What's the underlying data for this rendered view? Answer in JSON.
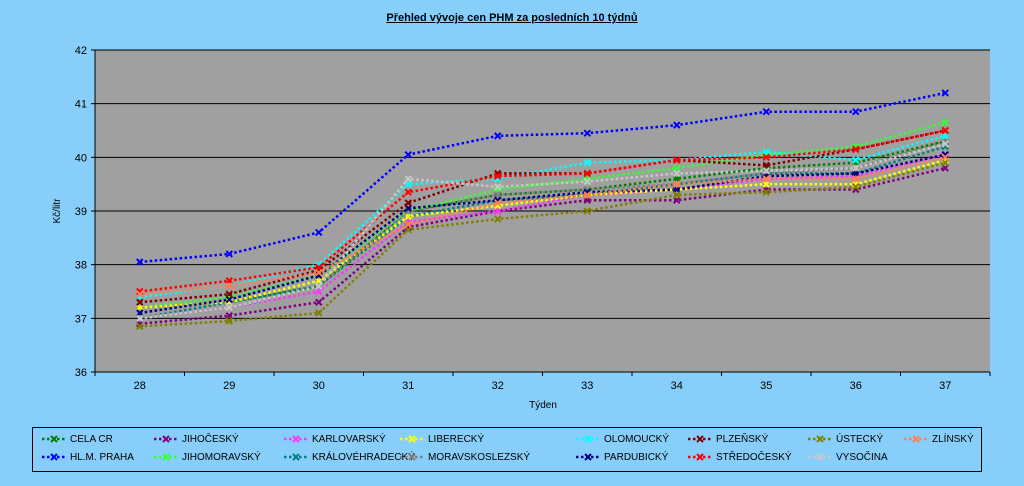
{
  "chart_data": {
    "type": "line",
    "title": "Přehled vývoje cen PHM za posledních 10 týdnů",
    "xlabel": "Týden",
    "ylabel": "Kč/litr",
    "x": [
      28,
      29,
      30,
      31,
      32,
      33,
      34,
      35,
      36,
      37
    ],
    "ylim": [
      36,
      42
    ],
    "yticks": [
      36,
      37,
      38,
      39,
      40,
      41,
      42
    ],
    "grid": true,
    "legend_position": "bottom",
    "series": [
      {
        "name": "CELA CR",
        "color": "#008000",
        "values": [
          37.2,
          37.3,
          37.6,
          39.0,
          39.3,
          39.4,
          39.6,
          39.8,
          39.9,
          40.3
        ]
      },
      {
        "name": "HL.M. PRAHA",
        "color": "#0000ff",
        "values": [
          38.05,
          38.2,
          38.6,
          40.05,
          40.4,
          40.45,
          40.6,
          40.85,
          40.85,
          41.2
        ]
      },
      {
        "name": "JIHOČESKÝ",
        "color": "#800080",
        "values": [
          36.9,
          37.05,
          37.3,
          38.7,
          39.0,
          39.2,
          39.2,
          39.4,
          39.4,
          39.8
        ]
      },
      {
        "name": "JIHOMORAVSKÝ",
        "color": "#33ff33",
        "values": [
          37.2,
          37.4,
          37.8,
          39.0,
          39.4,
          39.6,
          39.8,
          40.05,
          40.2,
          40.65
        ]
      },
      {
        "name": "KARLOVARSKÝ",
        "color": "#ff33ff",
        "values": [
          37.0,
          37.2,
          37.5,
          38.8,
          39.0,
          39.3,
          39.4,
          39.6,
          39.65,
          40.05
        ]
      },
      {
        "name": "KRÁLOVÉHRADECKÝ",
        "color": "#008080",
        "values": [
          37.0,
          37.3,
          37.6,
          38.9,
          39.2,
          39.3,
          39.5,
          39.7,
          39.7,
          40.2
        ]
      },
      {
        "name": "LIBERECKÝ",
        "color": "#ffff00",
        "values": [
          37.2,
          37.3,
          37.7,
          38.9,
          39.1,
          39.3,
          39.4,
          39.5,
          39.5,
          39.95
        ]
      },
      {
        "name": "MORAVSKOSLEZSKÝ",
        "color": "#808080",
        "values": [
          37.0,
          37.2,
          37.6,
          39.0,
          39.3,
          39.4,
          39.5,
          39.7,
          39.8,
          40.3
        ]
      },
      {
        "name": "OLOMOUCKÝ",
        "color": "#00ffff",
        "values": [
          37.4,
          37.6,
          38.0,
          39.5,
          39.6,
          39.9,
          39.95,
          40.1,
          39.95,
          40.4
        ]
      },
      {
        "name": "PARDUBICKÝ",
        "color": "#000080",
        "values": [
          37.1,
          37.35,
          37.8,
          39.05,
          39.2,
          39.35,
          39.4,
          39.65,
          39.7,
          40.05
        ]
      },
      {
        "name": "PLZEŇSKÝ",
        "color": "#800000",
        "values": [
          37.3,
          37.45,
          37.9,
          39.15,
          39.7,
          39.7,
          39.95,
          39.85,
          40.15,
          40.5
        ]
      },
      {
        "name": "STŘEDOČESKÝ",
        "color": "#ff0000",
        "values": [
          37.5,
          37.7,
          37.95,
          39.35,
          39.65,
          39.7,
          39.95,
          40.0,
          40.15,
          40.5
        ]
      },
      {
        "name": "ÚSTECKÝ",
        "color": "#808000",
        "values": [
          36.85,
          36.95,
          37.1,
          38.65,
          38.85,
          39.0,
          39.3,
          39.35,
          39.45,
          39.9
        ]
      },
      {
        "name": "VYSOČINA",
        "color": "#c8c8c8",
        "values": [
          37.0,
          37.2,
          37.6,
          39.6,
          39.45,
          39.55,
          39.7,
          39.75,
          39.8,
          40.25
        ]
      },
      {
        "name": "ZLÍNSKÝ",
        "color": "#ff7f50",
        "values": [
          37.45,
          37.6,
          37.85,
          38.75,
          39.15,
          39.3,
          39.5,
          39.6,
          39.6,
          40.0
        ]
      }
    ]
  }
}
